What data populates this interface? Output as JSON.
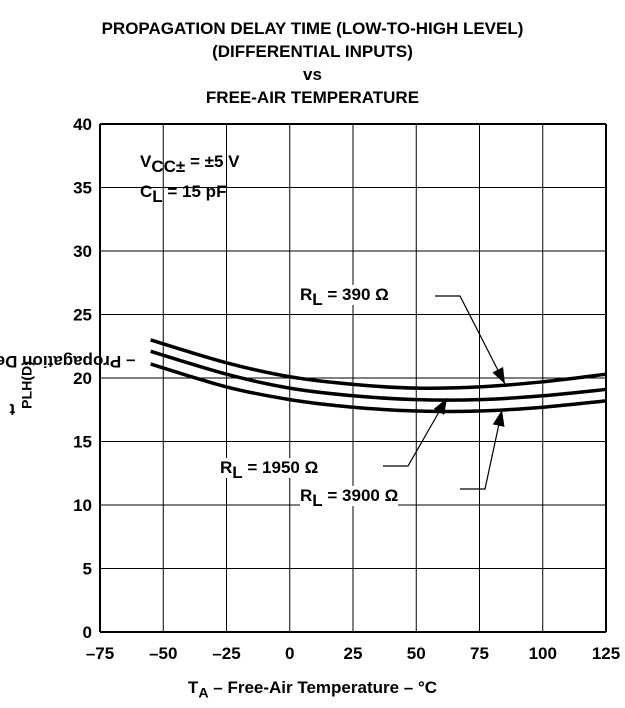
{
  "chart_data": {
    "type": "line",
    "title_lines": [
      "PROPAGATION DELAY TIME (LOW-TO-HIGH LEVEL)",
      "(DIFFERENTIAL INPUTS)",
      "vs",
      "FREE-AIR TEMPERATURE"
    ],
    "ylabel_pre": "t",
    "ylabel_sub": "PLH(D)",
    "ylabel_post": "– Propagation Delay Time – ns",
    "xlabel_pre": "T",
    "xlabel_sub": "A",
    "xlabel_post": " – Free-Air Temperature – °C",
    "xlim": [
      -75,
      125
    ],
    "ylim": [
      0,
      40
    ],
    "xticks": [
      -75,
      -50,
      -25,
      0,
      25,
      50,
      75,
      100,
      125
    ],
    "yticks": [
      0,
      5,
      10,
      15,
      20,
      25,
      30,
      35,
      40
    ],
    "xtick_labels": [
      "–75",
      "–50",
      "–25",
      "0",
      "25",
      "50",
      "75",
      "100",
      "125"
    ],
    "grid": true,
    "conditions": {
      "vcc_pre": "V",
      "vcc_sub": "CC±",
      "vcc_post": " = ±5 V",
      "cl_pre": "C",
      "cl_sub": "L",
      "cl_post": " = 15 pF"
    },
    "series": [
      {
        "label_pre": "R",
        "label_sub": "L",
        "label_post": " = 390 Ω",
        "x": [
          -55,
          -25,
          0,
          25,
          50,
          75,
          100,
          125
        ],
        "y": [
          23.0,
          21.2,
          20.1,
          19.5,
          19.2,
          19.3,
          19.7,
          20.3
        ]
      },
      {
        "label_pre": "R",
        "label_sub": "L",
        "label_post": " = 1950  Ω",
        "x": [
          -55,
          -25,
          0,
          25,
          50,
          75,
          100,
          125
        ],
        "y": [
          22.1,
          20.3,
          19.2,
          18.6,
          18.3,
          18.3,
          18.6,
          19.1
        ]
      },
      {
        "label_pre": "R",
        "label_sub": "L",
        "label_post": " = 3900 Ω",
        "x": [
          -55,
          -25,
          0,
          25,
          50,
          75,
          100,
          125
        ],
        "y": [
          21.1,
          19.3,
          18.3,
          17.7,
          17.4,
          17.4,
          17.7,
          18.2
        ]
      }
    ]
  }
}
